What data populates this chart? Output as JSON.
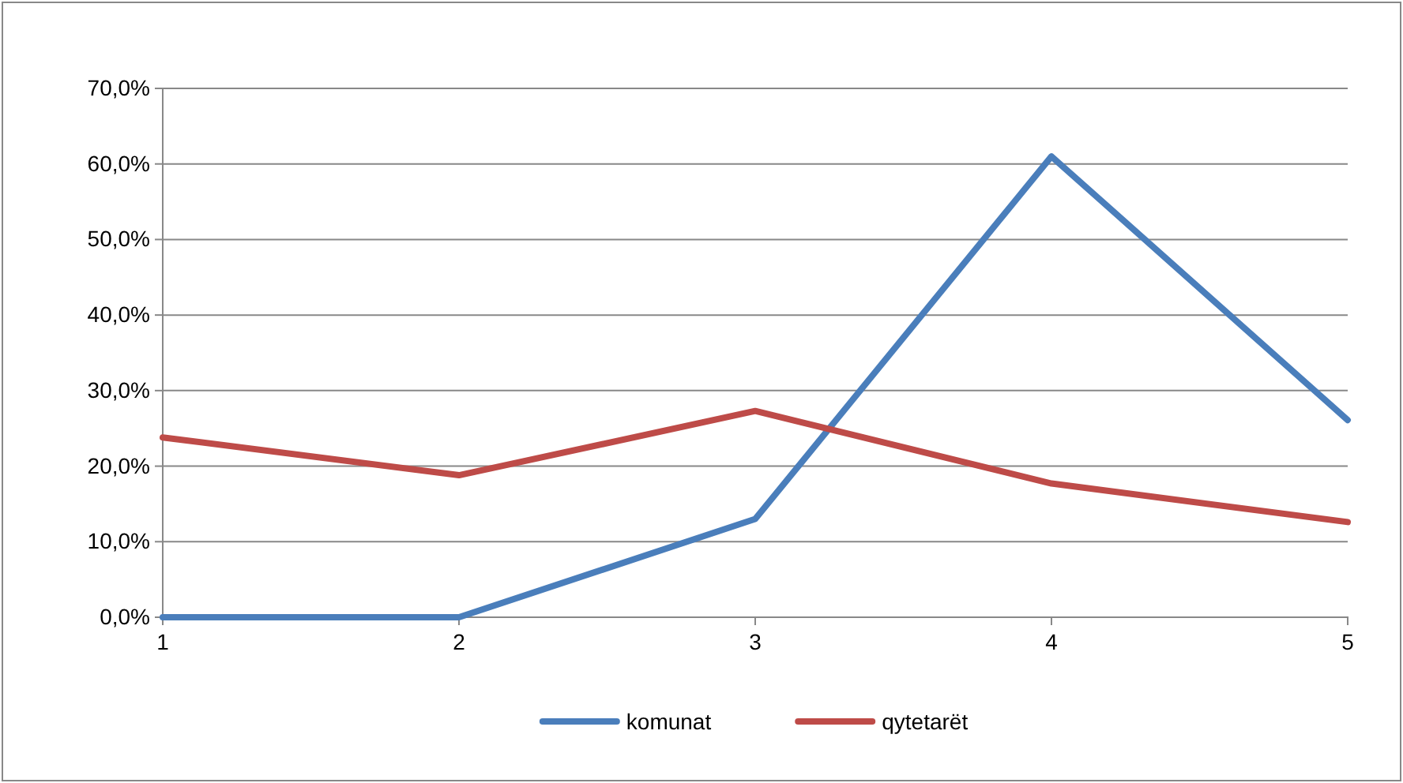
{
  "chart_data": {
    "type": "line",
    "x": [
      1,
      2,
      3,
      4,
      5
    ],
    "series": [
      {
        "name": "komunat",
        "color": "#4a7ebb",
        "values": [
          0,
          0,
          13.0,
          61.0,
          26.1
        ]
      },
      {
        "name": "qytetarët",
        "color": "#be4b48",
        "values": [
          23.8,
          18.8,
          27.3,
          17.7,
          12.6
        ]
      }
    ],
    "xlim": [
      1,
      5
    ],
    "xticks": [
      1,
      2,
      3,
      4,
      5
    ],
    "ylim": [
      0,
      70
    ],
    "yticks": [
      {
        "value": 0,
        "label": "0,0%"
      },
      {
        "value": 10,
        "label": "10,0%"
      },
      {
        "value": 20,
        "label": "20,0%"
      },
      {
        "value": 30,
        "label": "30,0%"
      },
      {
        "value": 40,
        "label": "40,0%"
      },
      {
        "value": 50,
        "label": "50,0%"
      },
      {
        "value": 60,
        "label": "60,0%"
      },
      {
        "value": 70,
        "label": "70,0%"
      }
    ],
    "grid": "y",
    "legend": "bottom",
    "marker": "none",
    "line_style": "solid"
  }
}
